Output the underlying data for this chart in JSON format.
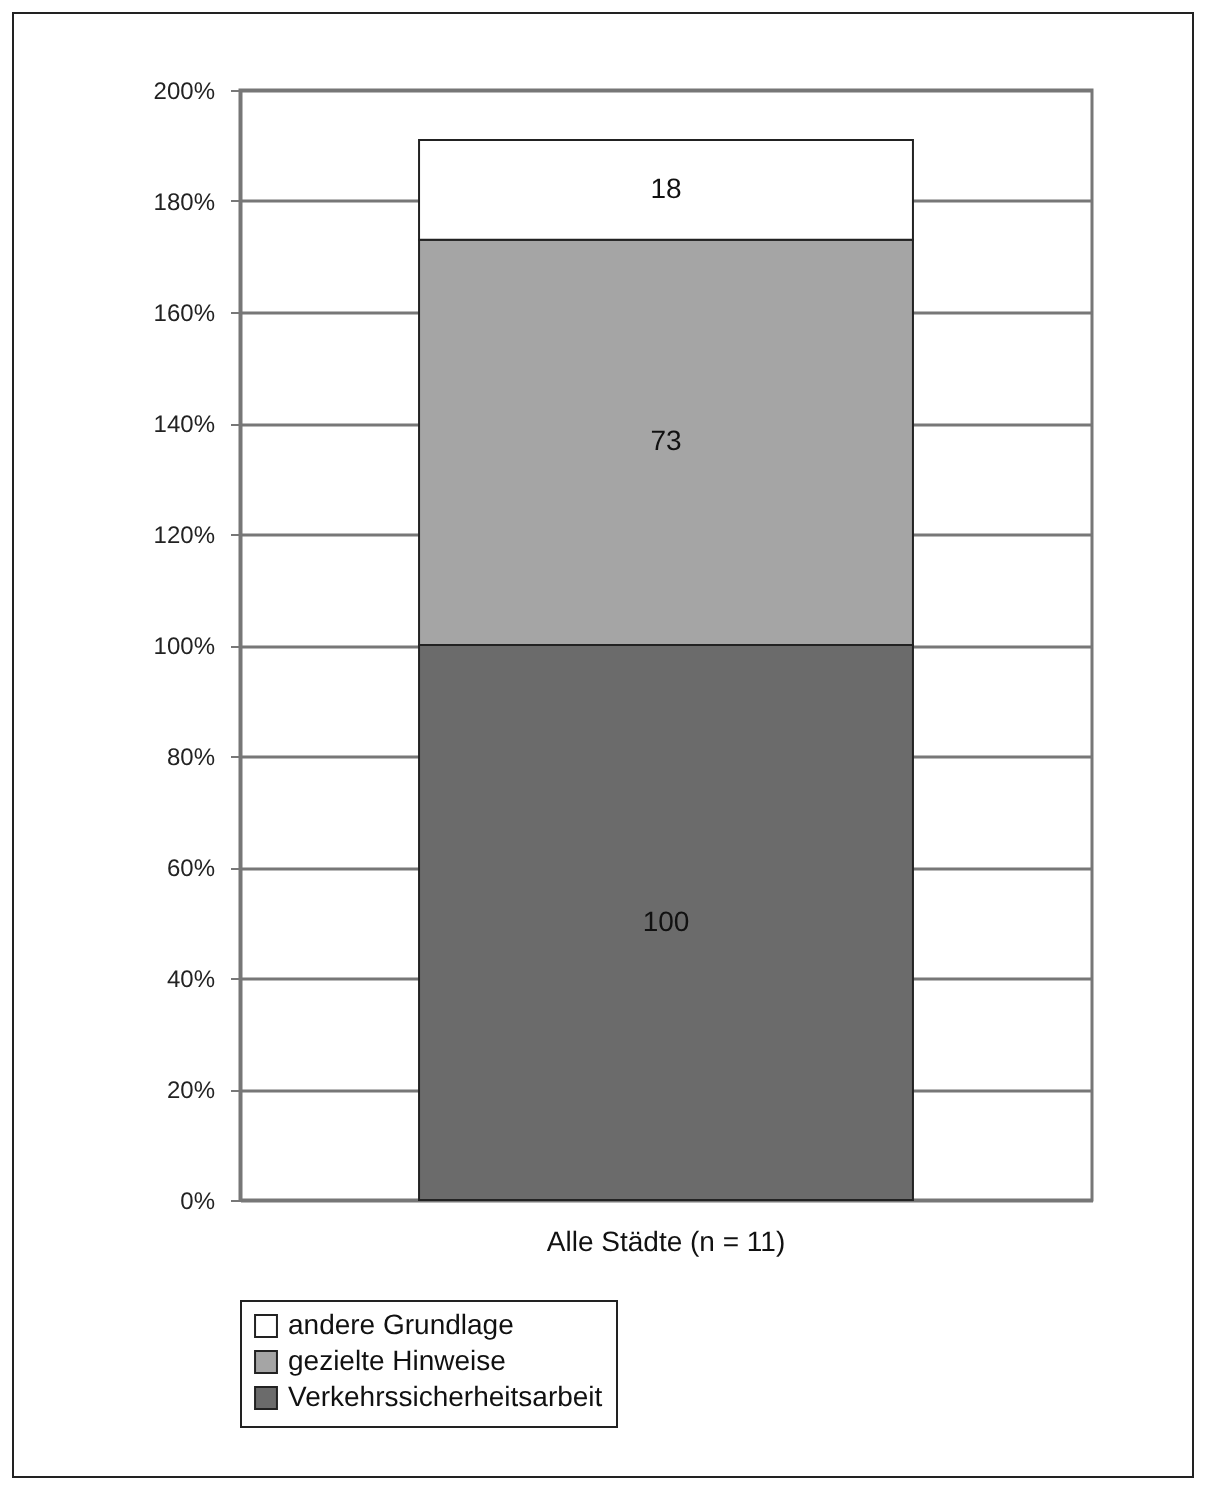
{
  "chart_data": {
    "type": "bar",
    "stacked": true,
    "categories": [
      "Alle Städte (n =  11)"
    ],
    "series": [
      {
        "name": "Verkehrssicherheitsarbeit",
        "color": "#6b6b6b",
        "values": [
          100
        ]
      },
      {
        "name": "gezielte Hinweise",
        "color": "#a5a5a5",
        "values": [
          73
        ]
      },
      {
        "name": "andere Grundlage",
        "color": "#ffffff",
        "values": [
          18
        ]
      }
    ],
    "ylim": [
      0,
      200
    ],
    "yticks": [
      {
        "value": 0,
        "label": "0%"
      },
      {
        "value": 20,
        "label": "20%"
      },
      {
        "value": 40,
        "label": "40%"
      },
      {
        "value": 60,
        "label": "60%"
      },
      {
        "value": 80,
        "label": "80%"
      },
      {
        "value": 100,
        "label": "100%"
      },
      {
        "value": 120,
        "label": "120%"
      },
      {
        "value": 140,
        "label": "140%"
      },
      {
        "value": 160,
        "label": "160%"
      },
      {
        "value": 180,
        "label": "180%"
      },
      {
        "value": 200,
        "label": "200%"
      }
    ],
    "grid": true,
    "data_labels": true,
    "legend": "bottom"
  }
}
